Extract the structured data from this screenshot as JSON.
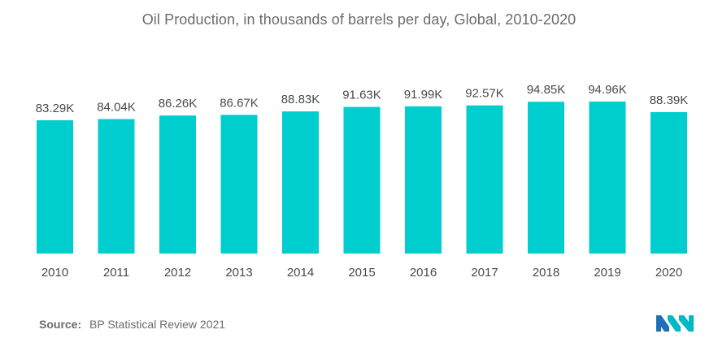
{
  "chart_data": {
    "type": "bar",
    "title": "Oil Production, in thousands of barrels per day, Global, 2010-2020",
    "categories": [
      "2010",
      "2011",
      "2012",
      "2013",
      "2014",
      "2015",
      "2016",
      "2017",
      "2018",
      "2019",
      "2020"
    ],
    "values": [
      83.29,
      84.04,
      86.26,
      86.67,
      88.83,
      91.63,
      91.99,
      92.57,
      94.85,
      94.96,
      88.39
    ],
    "value_labels": [
      "83.29K",
      "84.04K",
      "86.26K",
      "86.67K",
      "88.83K",
      "91.63K",
      "91.99K",
      "92.57K",
      "94.85K",
      "94.96K",
      "88.39K"
    ],
    "xlabel": "",
    "ylabel": "",
    "ylim": [
      0,
      100
    ],
    "grid": false,
    "legend": "none",
    "bar_color": "#00CDCE"
  },
  "source": {
    "label": "Source:",
    "text": "BP Statistical Review 2021"
  },
  "logo": {
    "icon": "mordor-intelligence-logo-icon",
    "colors": [
      "#1E6FB8",
      "#00B8C8"
    ]
  }
}
